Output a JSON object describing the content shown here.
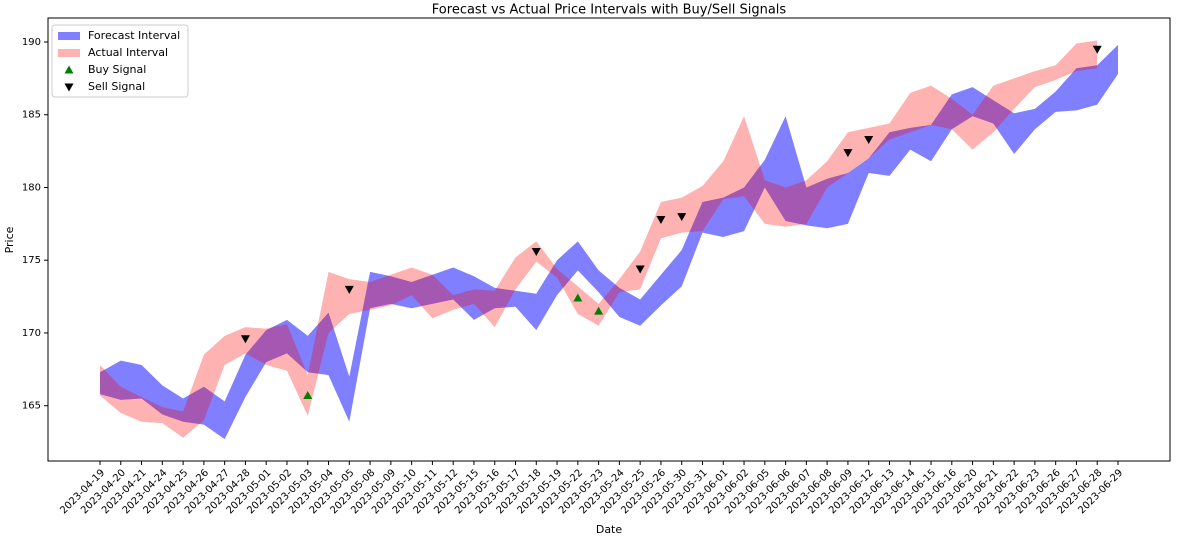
{
  "chart_data": {
    "type": "band",
    "title": "Forecast vs Actual Price Intervals with Buy/Sell Signals",
    "xlabel": "Date",
    "ylabel": "Price",
    "categories": [
      "2023-04-19",
      "2023-04-20",
      "2023-04-21",
      "2023-04-24",
      "2023-04-25",
      "2023-04-26",
      "2023-04-27",
      "2023-04-28",
      "2023-05-01",
      "2023-05-02",
      "2023-05-03",
      "2023-05-04",
      "2023-05-05",
      "2023-05-08",
      "2023-05-09",
      "2023-05-10",
      "2023-05-11",
      "2023-05-12",
      "2023-05-15",
      "2023-05-16",
      "2023-05-17",
      "2023-05-18",
      "2023-05-19",
      "2023-05-22",
      "2023-05-23",
      "2023-05-24",
      "2023-05-25",
      "2023-05-26",
      "2023-05-30",
      "2023-05-31",
      "2023-06-01",
      "2023-06-02",
      "2023-06-05",
      "2023-06-06",
      "2023-06-07",
      "2023-06-08",
      "2023-06-09",
      "2023-06-12",
      "2023-06-13",
      "2023-06-14",
      "2023-06-15",
      "2023-06-16",
      "2023-06-20",
      "2023-06-21",
      "2023-06-22",
      "2023-06-23",
      "2023-06-26",
      "2023-06-27",
      "2023-06-28",
      "2023-06-29"
    ],
    "series": [
      {
        "name": "Forecast Interval",
        "color": "#0000ff",
        "alpha": 0.5,
        "lower": [
          165.8,
          165.4,
          165.5,
          164.4,
          163.9,
          163.7,
          162.7,
          165.6,
          168.0,
          168.6,
          167.3,
          167.1,
          163.9,
          171.7,
          172.0,
          171.7,
          172.0,
          172.3,
          170.9,
          171.7,
          171.8,
          170.2,
          172.6,
          174.3,
          172.8,
          171.1,
          170.5,
          171.9,
          173.2,
          176.9,
          176.6,
          177.0,
          180.0,
          177.7,
          177.4,
          177.2,
          177.5,
          181.0,
          180.8,
          182.6,
          181.8,
          184.0,
          184.9,
          184.4,
          182.3,
          184.0,
          185.2,
          185.3,
          185.7,
          187.8
        ],
        "upper": [
          167.3,
          168.1,
          167.8,
          166.4,
          165.5,
          166.3,
          165.3,
          168.5,
          170.2,
          170.9,
          169.8,
          171.4,
          167.0,
          174.2,
          173.9,
          173.5,
          174.0,
          174.5,
          173.9,
          173.1,
          172.9,
          172.7,
          175.0,
          176.3,
          174.3,
          173.1,
          172.3,
          174.0,
          175.7,
          179.0,
          179.3,
          180.0,
          181.9,
          184.9,
          180.0,
          180.6,
          181.0,
          182.0,
          183.8,
          184.1,
          184.3,
          186.4,
          186.9,
          186.0,
          185.1,
          185.4,
          186.6,
          188.2,
          188.4,
          189.8
        ]
      },
      {
        "name": "Actual Interval",
        "color": "#ff0000",
        "alpha": 0.3,
        "lower": [
          165.7,
          164.5,
          163.9,
          163.8,
          162.8,
          164.0,
          167.8,
          168.6,
          167.8,
          167.4,
          164.3,
          170.0,
          171.3,
          171.6,
          171.9,
          172.6,
          171.0,
          171.6,
          172.0,
          170.4,
          173.0,
          174.9,
          173.8,
          171.3,
          170.5,
          172.8,
          173.0,
          176.5,
          176.9,
          177.0,
          179.2,
          179.4,
          177.5,
          177.3,
          177.5,
          180.0,
          181.0,
          182.0,
          183.3,
          183.8,
          184.3,
          184.0,
          182.6,
          183.8,
          185.4,
          186.9,
          187.4,
          188.0,
          188.2,
          null
        ],
        "upper": [
          167.8,
          166.3,
          165.6,
          164.9,
          164.6,
          168.5,
          169.8,
          170.4,
          170.3,
          170.6,
          167.1,
          174.2,
          173.7,
          173.5,
          174.0,
          174.5,
          174.0,
          172.6,
          173.0,
          172.9,
          175.2,
          176.3,
          174.4,
          173.2,
          172.0,
          173.7,
          175.6,
          179.0,
          179.3,
          180.1,
          181.8,
          184.9,
          180.5,
          180.0,
          180.5,
          181.8,
          183.8,
          184.1,
          184.4,
          186.5,
          187.0,
          186.1,
          185.0,
          187.0,
          187.5,
          188.0,
          188.4,
          189.9,
          190.1,
          null
        ]
      }
    ],
    "signals": [
      {
        "name": "Buy Signal",
        "color": "#008000",
        "marker": "up",
        "dates": [
          "2023-05-03",
          "2023-05-22",
          "2023-05-23"
        ],
        "values": [
          165.7,
          172.4,
          171.5
        ]
      },
      {
        "name": "Sell Signal",
        "color": "#000000",
        "marker": "down",
        "dates": [
          "2023-04-28",
          "2023-05-05",
          "2023-05-18",
          "2023-05-25",
          "2023-05-26",
          "2023-05-30",
          "2023-06-09",
          "2023-06-12",
          "2023-06-28"
        ],
        "values": [
          169.6,
          173.0,
          175.6,
          174.4,
          177.8,
          178.0,
          182.4,
          183.3,
          189.5
        ]
      }
    ],
    "ylim": [
      161.2,
      191.65
    ],
    "yticks": [
      165,
      170,
      175,
      180,
      185,
      190
    ],
    "legend": "upper left"
  }
}
